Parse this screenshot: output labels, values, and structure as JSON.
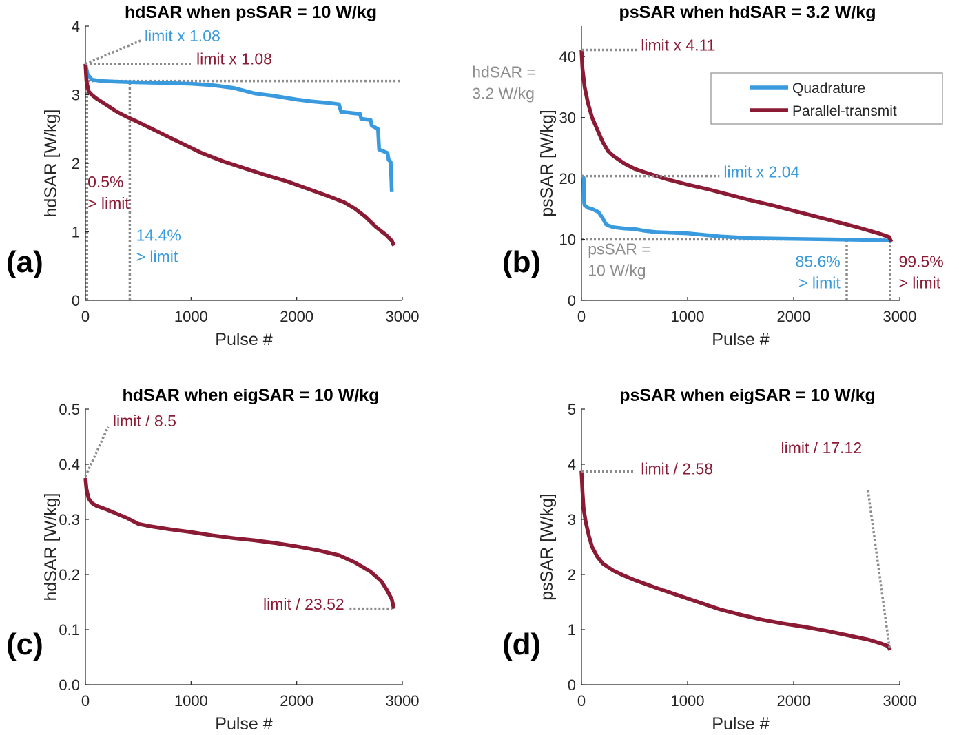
{
  "colors": {
    "quadrature": "#3a9ade",
    "parallel": "#8b1a35",
    "reference": "#8c8c8c",
    "axis": "#262626"
  },
  "chart_data": [
    {
      "panel_label": "(a)",
      "type": "line",
      "title": "hdSAR when psSAR = 10 W/kg",
      "xlabel": "Pulse #",
      "ylabel": "hdSAR [W/kg]",
      "xlim": [
        0,
        3000
      ],
      "ylim": [
        0,
        4
      ],
      "xticks": [
        0,
        1000,
        2000,
        3000
      ],
      "yticks": [
        0,
        1,
        2,
        3,
        4
      ],
      "grid": false,
      "series": [
        {
          "name": "Quadrature",
          "color": "quadrature",
          "x": [
            0,
            20,
            60,
            150,
            300,
            500,
            800,
            1000,
            1200,
            1400,
            1600,
            1800,
            2000,
            2150,
            2300,
            2400,
            2420,
            2600,
            2610,
            2700,
            2710,
            2770,
            2780,
            2860,
            2870,
            2890,
            2900
          ],
          "y": [
            3.45,
            3.3,
            3.22,
            3.2,
            3.19,
            3.18,
            3.17,
            3.16,
            3.14,
            3.1,
            3.02,
            2.98,
            2.93,
            2.9,
            2.88,
            2.86,
            2.75,
            2.72,
            2.65,
            2.63,
            2.55,
            2.5,
            2.2,
            2.15,
            2.05,
            2.02,
            1.58
          ]
        },
        {
          "name": "Parallel-transmit",
          "color": "parallel",
          "x": [
            0,
            10,
            30,
            60,
            100,
            200,
            300,
            400,
            500,
            700,
            900,
            1100,
            1300,
            1500,
            1700,
            1900,
            2100,
            2300,
            2450,
            2550,
            2650,
            2750,
            2850,
            2900,
            2920
          ],
          "y": [
            3.45,
            3.2,
            3.05,
            3.0,
            2.95,
            2.85,
            2.75,
            2.67,
            2.6,
            2.45,
            2.3,
            2.15,
            2.03,
            1.93,
            1.83,
            1.74,
            1.63,
            1.52,
            1.43,
            1.34,
            1.22,
            1.07,
            0.95,
            0.87,
            0.8
          ]
        }
      ],
      "reference_lines": [
        {
          "x": [
            20,
            3000
          ],
          "y": [
            3.2,
            3.2
          ]
        },
        {
          "x": [
            15,
            15
          ],
          "y": [
            0,
            3.35
          ]
        },
        {
          "x": [
            420,
            420
          ],
          "y": [
            0,
            3.2
          ]
        }
      ],
      "annotations": [
        {
          "lines": [
            "limit x 1.08"
          ],
          "color": "quadrature",
          "x": 560,
          "y": 3.78,
          "leader": [
            [
              0,
              3.45
            ],
            [
              540,
              3.8
            ]
          ]
        },
        {
          "lines": [
            "limit x 1.08"
          ],
          "color": "parallel",
          "x": 1050,
          "y": 3.44,
          "leader": [
            [
              0,
              3.45
            ],
            [
              1010,
              3.45
            ]
          ]
        },
        {
          "lines": [
            "hdSAR =",
            "3.2 W/kg"
          ],
          "color": "reference",
          "x": 3660,
          "y": 3.25
        },
        {
          "lines": [
            "0.5%",
            "> limit"
          ],
          "color": "parallel",
          "x": 20,
          "y": 1.65
        },
        {
          "lines": [
            "14.4%",
            "> limit"
          ],
          "color": "quadrature",
          "x": 480,
          "y": 0.87
        }
      ]
    },
    {
      "panel_label": "(b)",
      "type": "line",
      "title": "psSAR when hdSAR = 3.2 W/kg",
      "xlabel": "Pulse #",
      "ylabel": "psSAR [W/kg]",
      "xlim": [
        0,
        3000
      ],
      "ylim": [
        0,
        45
      ],
      "xticks": [
        0,
        1000,
        2000,
        3000
      ],
      "yticks": [
        0,
        10,
        20,
        30,
        40
      ],
      "grid": false,
      "legend": {
        "position": "top-right",
        "entries": [
          "Quadrature",
          "Parallel-transmit"
        ]
      },
      "series": [
        {
          "name": "Quadrature",
          "color": "quadrature",
          "x": [
            0,
            10,
            20,
            25,
            30,
            60,
            100,
            160,
            200,
            230,
            250,
            300,
            400,
            500,
            600,
            700,
            1000,
            1300,
            1600,
            2000,
            2400,
            2700,
            2900,
            2920
          ],
          "y": [
            20.4,
            20.3,
            20.1,
            16.0,
            15.6,
            15.2,
            15.0,
            14.5,
            13.5,
            12.5,
            12.3,
            12.0,
            11.8,
            11.7,
            11.4,
            11.2,
            11.0,
            10.5,
            10.2,
            10.1,
            10.0,
            9.9,
            9.8,
            9.6
          ]
        },
        {
          "name": "Parallel-transmit",
          "color": "parallel",
          "x": [
            0,
            10,
            30,
            60,
            100,
            150,
            200,
            250,
            300,
            400,
            500,
            600,
            800,
            1000,
            1200,
            1400,
            1600,
            1800,
            2000,
            2200,
            2400,
            2600,
            2800,
            2900,
            2920
          ],
          "y": [
            41.1,
            38.0,
            35.0,
            32.5,
            30.0,
            28.0,
            26.0,
            24.5,
            23.7,
            22.5,
            21.6,
            21.0,
            19.9,
            19.0,
            18.2,
            17.3,
            16.4,
            15.6,
            14.7,
            13.8,
            12.9,
            12.0,
            11.0,
            10.4,
            9.6
          ]
        }
      ],
      "reference_lines": [
        {
          "x": [
            0,
            2920
          ],
          "y": [
            10,
            10
          ]
        },
        {
          "x": [
            2500,
            2500
          ],
          "y": [
            0,
            10
          ]
        },
        {
          "x": [
            2910,
            2910
          ],
          "y": [
            0,
            10
          ]
        }
      ],
      "annotations": [
        {
          "lines": [
            "limit x 4.11"
          ],
          "color": "parallel",
          "x": 560,
          "y": 41.0,
          "leader": [
            [
              0,
              41.1
            ],
            [
              520,
              41.1
            ]
          ]
        },
        {
          "lines": [
            "limit x 2.04"
          ],
          "color": "quadrature",
          "x": 1340,
          "y": 20.2,
          "leader": [
            [
              0,
              20.4
            ],
            [
              1300,
              20.4
            ]
          ]
        },
        {
          "lines": [
            "psSAR =",
            "10 W/kg"
          ],
          "color": "reference",
          "x": 60,
          "y": 7.5
        },
        {
          "lines": [
            "85.6%",
            "> limit"
          ],
          "color": "quadrature",
          "x": 2440,
          "y": 5.5,
          "anchor": "end"
        },
        {
          "lines": [
            "99.5%",
            "> limit"
          ],
          "color": "parallel",
          "x": 2990,
          "y": 5.5
        }
      ]
    },
    {
      "panel_label": "(c)",
      "type": "line",
      "title": "hdSAR when eigSAR = 10 W/kg",
      "xlabel": "Pulse #",
      "ylabel": "hdSAR [W/kg]",
      "xlim": [
        0,
        3000
      ],
      "ylim": [
        0,
        0.5
      ],
      "xticks": [
        0,
        1000,
        2000,
        3000
      ],
      "yticks": [
        0,
        0.1,
        0.2,
        0.3,
        0.4,
        0.5
      ],
      "grid": false,
      "series": [
        {
          "name": "Parallel-transmit",
          "color": "parallel",
          "x": [
            0,
            10,
            30,
            60,
            100,
            200,
            300,
            400,
            500,
            600,
            800,
            1000,
            1200,
            1400,
            1600,
            1800,
            2000,
            2200,
            2400,
            2550,
            2700,
            2800,
            2860,
            2900,
            2920
          ],
          "y": [
            0.375,
            0.355,
            0.338,
            0.33,
            0.325,
            0.318,
            0.31,
            0.302,
            0.292,
            0.288,
            0.282,
            0.277,
            0.271,
            0.266,
            0.262,
            0.257,
            0.251,
            0.244,
            0.235,
            0.222,
            0.205,
            0.188,
            0.17,
            0.155,
            0.138
          ]
        }
      ],
      "annotations": [
        {
          "lines": [
            "limit / 8.5"
          ],
          "color": "parallel",
          "x": 260,
          "y": 0.469,
          "leader": [
            [
              0,
              0.378
            ],
            [
              215,
              0.468
            ]
          ]
        },
        {
          "lines": [
            "limit / 23.52"
          ],
          "color": "parallel",
          "x": 2450,
          "y": 0.136,
          "anchor": "end",
          "leader": [
            [
              2500,
              0.138
            ],
            [
              2905,
              0.138
            ]
          ]
        }
      ]
    },
    {
      "panel_label": "(d)",
      "type": "line",
      "title": "psSAR when eigSAR = 10 W/kg",
      "xlabel": "Pulse #",
      "ylabel": "psSAR [W/kg]",
      "xlim": [
        0,
        3000
      ],
      "ylim": [
        0,
        5
      ],
      "xticks": [
        0,
        1000,
        2000,
        3000
      ],
      "yticks": [
        0,
        1,
        2,
        3,
        4,
        5
      ],
      "grid": false,
      "series": [
        {
          "name": "Parallel-transmit",
          "color": "parallel",
          "x": [
            0,
            10,
            20,
            40,
            70,
            100,
            150,
            200,
            300,
            400,
            500,
            700,
            900,
            1100,
            1300,
            1500,
            1700,
            1900,
            2100,
            2300,
            2500,
            2700,
            2820,
            2890,
            2910
          ],
          "y": [
            3.88,
            3.5,
            3.2,
            2.95,
            2.7,
            2.5,
            2.32,
            2.2,
            2.07,
            1.98,
            1.9,
            1.76,
            1.63,
            1.5,
            1.37,
            1.27,
            1.18,
            1.11,
            1.05,
            0.98,
            0.9,
            0.82,
            0.75,
            0.7,
            0.63
          ]
        }
      ],
      "annotations": [
        {
          "lines": [
            "limit / 2.58"
          ],
          "color": "parallel",
          "x": 560,
          "y": 3.82,
          "leader": [
            [
              0,
              3.87
            ],
            [
              500,
              3.87
            ]
          ]
        },
        {
          "lines": [
            "limit / 17.12"
          ],
          "color": "parallel",
          "x": 1880,
          "y": 4.2,
          "leader": [
            [
              2700,
              3.53
            ],
            [
              2905,
              0.65
            ]
          ]
        }
      ]
    }
  ]
}
